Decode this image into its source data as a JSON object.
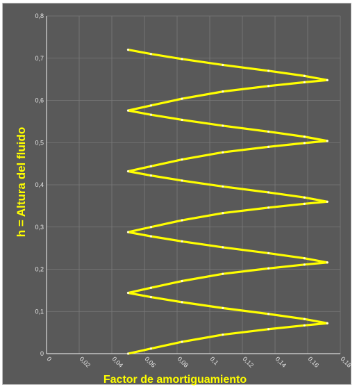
{
  "chart_data": {
    "type": "line",
    "xlabel": "Factor de amortiguamiento",
    "ylabel": "h = Altura del fluido",
    "xlim": [
      0,
      0.18
    ],
    "ylim": [
      0,
      0.8
    ],
    "xticks": [
      0,
      0.02,
      0.04,
      0.06,
      0.08,
      0.1,
      0.12,
      0.14,
      0.16,
      0.18
    ],
    "yticks": [
      0,
      0.1,
      0.2,
      0.3,
      0.4,
      0.5,
      0.6,
      0.7,
      0.8
    ],
    "xtick_labels": [
      "0",
      "0,02",
      "0,04",
      "0,06",
      "0,08",
      "0,1",
      "0,12",
      "0,14",
      "0,16",
      "0,18"
    ],
    "ytick_labels": [
      "0",
      "0,1",
      "0,2",
      "0,3",
      "0,4",
      "0,5",
      "0,6",
      "0,7",
      "0,8"
    ],
    "grid": true,
    "colors": {
      "background": "#595959",
      "series": "#ffff00",
      "grid": "#7a7a7a",
      "text": "#e6e6e6"
    },
    "series": [
      {
        "x": [
          0.05,
          0.064,
          0.083,
          0.108,
          0.136,
          0.158,
          0.172,
          0.158,
          0.136,
          0.108,
          0.083,
          0.064,
          0.05,
          0.064,
          0.083,
          0.108,
          0.136,
          0.158,
          0.172,
          0.158,
          0.136,
          0.108,
          0.083,
          0.064,
          0.05,
          0.064,
          0.083,
          0.108,
          0.136,
          0.158,
          0.172,
          0.158,
          0.136,
          0.108,
          0.083,
          0.064,
          0.05,
          0.064,
          0.083,
          0.108,
          0.136,
          0.158,
          0.172,
          0.158,
          0.136,
          0.108,
          0.083,
          0.064,
          0.05,
          0.064,
          0.083,
          0.108,
          0.136,
          0.158,
          0.172,
          0.158,
          0.136,
          0.108,
          0.083,
          0.064,
          0.05
        ],
        "y": [
          0.0,
          0.012,
          0.028,
          0.045,
          0.058,
          0.067,
          0.072,
          0.082,
          0.094,
          0.108,
          0.122,
          0.134,
          0.144,
          0.156,
          0.172,
          0.189,
          0.202,
          0.211,
          0.216,
          0.226,
          0.238,
          0.252,
          0.266,
          0.278,
          0.288,
          0.3,
          0.316,
          0.333,
          0.346,
          0.355,
          0.36,
          0.37,
          0.382,
          0.396,
          0.41,
          0.422,
          0.432,
          0.444,
          0.46,
          0.477,
          0.49,
          0.499,
          0.504,
          0.514,
          0.526,
          0.54,
          0.554,
          0.566,
          0.576,
          0.588,
          0.604,
          0.621,
          0.634,
          0.643,
          0.648,
          0.658,
          0.67,
          0.684,
          0.698,
          0.71,
          0.72
        ]
      }
    ]
  }
}
